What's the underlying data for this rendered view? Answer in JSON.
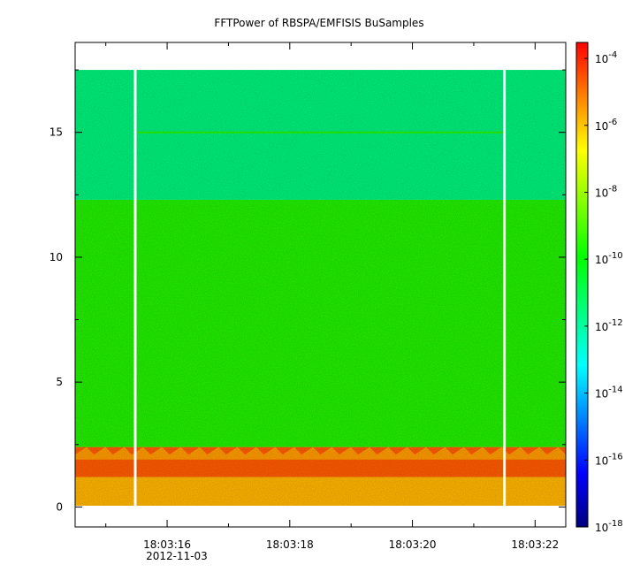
{
  "chart_data": {
    "type": "heatmap",
    "title": "FFTPower of RBSPA/EMFISIS  BuSamples",
    "x_axis": {
      "type": "time",
      "range": [
        "18:03:14.5",
        "18:03:22.5"
      ],
      "tick_labels": [
        "18:03:16",
        "18:03:18",
        "18:03:20",
        "18:03:22"
      ],
      "tick_values_s": [
        16,
        18,
        20,
        22
      ],
      "minor_ticks_s": [
        15,
        17,
        19,
        21
      ],
      "date_label": "2012-11-03",
      "date_under_tick": "18:03:16"
    },
    "y_axis": {
      "range": [
        -0.8,
        18.6
      ],
      "tick_values": [
        0,
        5,
        10,
        15
      ],
      "tick_labels": [
        "0",
        "5",
        "10",
        "15"
      ],
      "minor_ticks": [
        2.5,
        7.5,
        12.5,
        17.5
      ]
    },
    "colorbar": {
      "scale": "log",
      "range": [
        1e-18,
        0.0003
      ],
      "colormap": [
        "#00007f",
        "#0000ff",
        "#0080ff",
        "#00ffff",
        "#00ff80",
        "#00ff00",
        "#80ff00",
        "#ffff00",
        "#ff8000",
        "#ff0000"
      ],
      "tick_labels": [
        {
          "base": "10",
          "exp": "-4"
        },
        {
          "base": "10",
          "exp": "-6"
        },
        {
          "base": "10",
          "exp": "-8"
        },
        {
          "base": "10",
          "exp": "-10"
        },
        {
          "base": "10",
          "exp": "-12"
        },
        {
          "base": "10",
          "exp": "-14"
        },
        {
          "base": "10",
          "exp": "-16"
        },
        {
          "base": "10",
          "exp": "-18"
        }
      ],
      "tick_exponents": [
        -4,
        -6,
        -8,
        -10,
        -12,
        -14,
        -16,
        -18
      ]
    },
    "data_extent": {
      "x": [
        14.5,
        22.5
      ],
      "y": [
        0.05,
        17.5
      ]
    },
    "gaps_at_s": [
      15.48,
      21.5
    ],
    "bands": [
      {
        "from": 0,
        "to": 1.2,
        "color": "#ffb400"
      },
      {
        "from": 1.2,
        "to": 2.4,
        "color": "#ff5a00"
      },
      {
        "from": 2.4,
        "to": 12.3,
        "color": "#22ee00"
      },
      {
        "from": 12.3,
        "to": 17.5,
        "color": "#00f07a"
      }
    ],
    "line_at": {
      "y": 15.0,
      "color": "#22dd00"
    },
    "grid": false
  }
}
